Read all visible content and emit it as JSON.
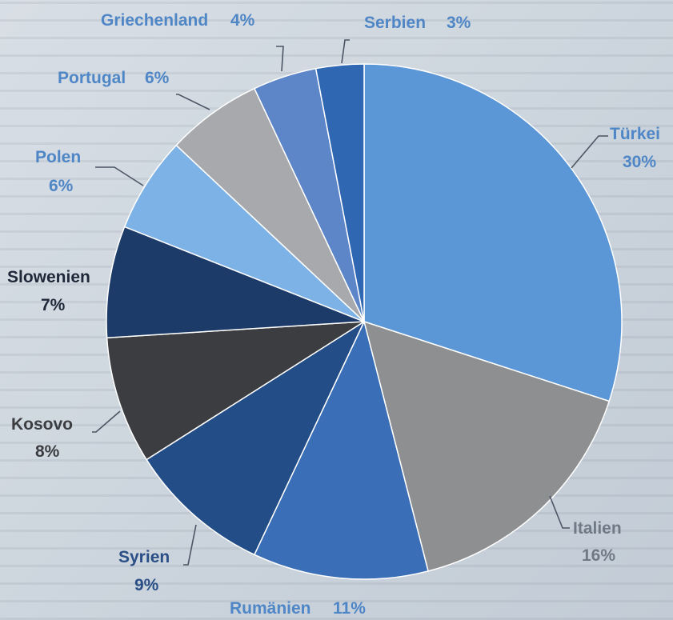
{
  "colors": {
    "label_blue": "#4f86c6",
    "label_gray": "#707a86",
    "label_dark": "#1e2838",
    "leader": "#4b5563",
    "slice_edge": "#ffffff"
  },
  "chart_data": {
    "type": "pie",
    "start": "12 o'clock",
    "direction": "clockwise",
    "slices": [
      {
        "name": "Türkei",
        "value": 30,
        "label_value": "30%",
        "color": "#5b96d6",
        "text_color": "#4f86c6"
      },
      {
        "name": "Italien",
        "value": 16,
        "label_value": "16%",
        "color": "#8e8f91",
        "text_color": "#707a86"
      },
      {
        "name": "Rumänien",
        "value": 11,
        "label_value": "11%",
        "color": "#3a6fb7",
        "text_color": "#4f86c6"
      },
      {
        "name": "Syrien",
        "value": 9,
        "label_value": "9%",
        "color": "#234d87",
        "text_color": "#2a4e86"
      },
      {
        "name": "Kosovo",
        "value": 8,
        "label_value": "8%",
        "color": "#3b3d41",
        "text_color": "#3b3d41"
      },
      {
        "name": "Slowenien",
        "value": 7,
        "label_value": "7%",
        "color": "#1d3b69",
        "text_color": "#1e2838"
      },
      {
        "name": "Polen",
        "value": 6,
        "label_value": "6%",
        "color": "#7db2e6",
        "text_color": "#4f86c6"
      },
      {
        "name": "Portugal",
        "value": 6,
        "label_value": "6%",
        "color": "#a7a9ac",
        "text_color": "#4f86c6"
      },
      {
        "name": "Griechenland",
        "value": 4,
        "label_value": "4%",
        "color": "#5d86c9",
        "text_color": "#4f86c6"
      },
      {
        "name": "Serbien",
        "value": 3,
        "label_value": "3%",
        "color": "#2f67b2",
        "text_color": "#4f86c6"
      }
    ]
  }
}
